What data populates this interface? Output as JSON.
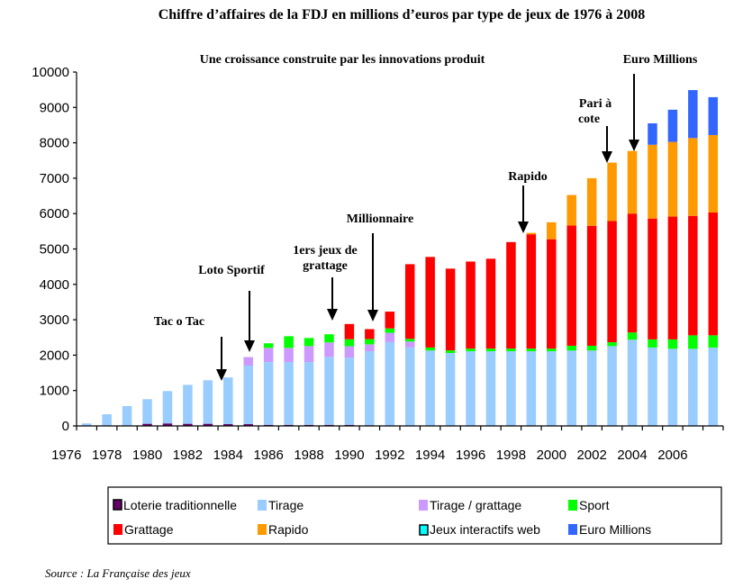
{
  "title": "Chiffre d’affaires de la FDJ en millions d’euros par type de jeux de 1976 à 2008",
  "source": "Source : La Française des jeux",
  "chart_data": {
    "type": "bar",
    "stacked": true,
    "title": "Chiffre d’affaires de la FDJ en millions d’euros par type de jeux de 1976 à 2008",
    "subtitle": "Une croissance construite par les innovations produit",
    "xlabel": "",
    "ylabel": "",
    "ylim": [
      0,
      10000
    ],
    "grid": false,
    "legend_position": "bottom",
    "y_tick_labels": [
      "0",
      "1000",
      "2000",
      "3000",
      "4000",
      "5000",
      "6000",
      "7000",
      "8000",
      "9000",
      "10000"
    ],
    "x_tick_labels": [
      "1976",
      "1978",
      "1980",
      "1982",
      "1984",
      "1986",
      "1988",
      "1990",
      "1992",
      "1994",
      "1996",
      "1998",
      "2000",
      "2002",
      "2004",
      "2006"
    ],
    "categories": [
      "1977",
      "1978",
      "1979",
      "1980",
      "1981",
      "1982",
      "1983",
      "1984",
      "1985",
      "1986",
      "1987",
      "1988",
      "1989",
      "1990",
      "1991",
      "1992",
      "1993",
      "1994",
      "1995",
      "1996",
      "1997",
      "1998",
      "1999",
      "2000",
      "2001",
      "2002",
      "2003",
      "2004",
      "2005",
      "2006",
      "2007",
      "2008"
    ],
    "series": [
      {
        "name": "Loterie traditionnelle",
        "color": "#660066",
        "values": [
          0,
          0,
          0,
          60,
          70,
          60,
          60,
          50,
          50,
          30,
          30,
          30,
          30,
          30,
          20,
          0,
          0,
          0,
          0,
          0,
          0,
          0,
          0,
          0,
          0,
          0,
          0,
          0,
          0,
          0,
          0,
          0
        ]
      },
      {
        "name": "Tirage",
        "color": "#99CCFF",
        "values": [
          70,
          330,
          560,
          695,
          915,
          1100,
          1230,
          1320,
          1655,
          1775,
          1775,
          1775,
          1920,
          1900,
          2090,
          2370,
          2220,
          2130,
          2060,
          2110,
          2110,
          2110,
          2110,
          2110,
          2130,
          2130,
          2255,
          2435,
          2215,
          2180,
          2180,
          2215
        ]
      },
      {
        "name": "Tirage / grattage",
        "color": "#CC99FF",
        "values": [
          0,
          0,
          0,
          0,
          0,
          0,
          0,
          0,
          240,
          400,
          400,
          450,
          410,
          320,
          195,
          260,
          165,
          0,
          0,
          0,
          0,
          0,
          0,
          0,
          0,
          0,
          0,
          0,
          0,
          0,
          0,
          0
        ]
      },
      {
        "name": "Sport",
        "color": "#00FF00",
        "values": [
          0,
          0,
          0,
          0,
          0,
          0,
          0,
          0,
          0,
          130,
          330,
          230,
          230,
          200,
          150,
          125,
          75,
          85,
          75,
          75,
          75,
          75,
          75,
          75,
          135,
          135,
          110,
          205,
          230,
          265,
          380,
          345
        ]
      },
      {
        "name": "Grattage",
        "color": "#FF0000",
        "values": [
          0,
          0,
          0,
          0,
          0,
          0,
          0,
          0,
          0,
          0,
          0,
          0,
          0,
          430,
          280,
          475,
          2110,
          2560,
          2310,
          2460,
          2540,
          3010,
          3230,
          3090,
          3400,
          3390,
          3425,
          3360,
          3415,
          3470,
          3375,
          3470
        ]
      },
      {
        "name": "Rapido",
        "color": "#FF9900",
        "values": [
          0,
          0,
          0,
          0,
          0,
          0,
          0,
          0,
          0,
          0,
          0,
          0,
          0,
          0,
          0,
          0,
          0,
          0,
          0,
          0,
          0,
          0,
          40,
          480,
          860,
          1345,
          1650,
          1770,
          2085,
          2110,
          2200,
          2190
        ]
      },
      {
        "name": "Jeux interactifs web",
        "color": "#00FFFF",
        "values": [
          0,
          0,
          0,
          0,
          0,
          0,
          0,
          0,
          0,
          0,
          0,
          0,
          0,
          0,
          0,
          0,
          0,
          0,
          0,
          0,
          0,
          0,
          0,
          0,
          0,
          0,
          0,
          0,
          0,
          0,
          0,
          0
        ]
      },
      {
        "name": "Euro Millions",
        "color": "#3366FF",
        "values": [
          0,
          0,
          0,
          0,
          0,
          0,
          0,
          0,
          0,
          0,
          0,
          0,
          0,
          0,
          0,
          0,
          0,
          0,
          0,
          0,
          0,
          0,
          0,
          0,
          0,
          0,
          0,
          0,
          605,
          910,
          1355,
          1070
        ]
      }
    ],
    "annotations": [
      {
        "lines": [
          "Tac o Tac"
        ],
        "year": "1984"
      },
      {
        "lines": [
          "Loto Sportif"
        ],
        "year": "1985"
      },
      {
        "lines": [
          "1ers jeux de",
          "grattage"
        ],
        "year": "1989"
      },
      {
        "lines": [
          "Millionnaire"
        ],
        "year": "1991"
      },
      {
        "lines": [
          "Rapido"
        ],
        "year": "1999"
      },
      {
        "lines": [
          "Pari à",
          "cote"
        ],
        "year": "2003"
      },
      {
        "lines": [
          "Euro Millions"
        ],
        "year": "2004"
      }
    ]
  }
}
